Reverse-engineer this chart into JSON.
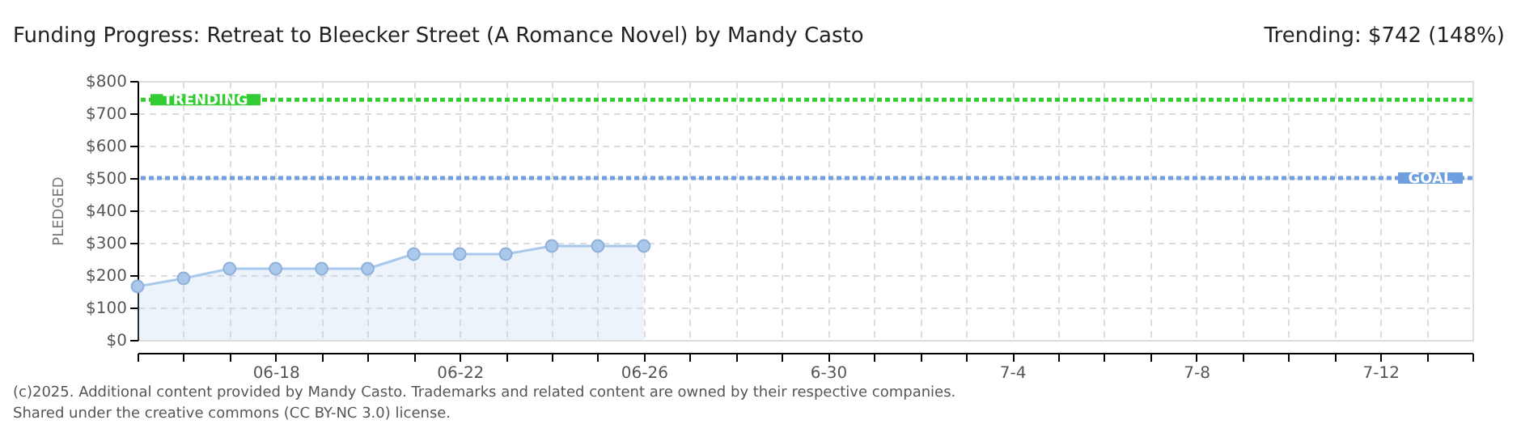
{
  "chart_data": {
    "type": "area",
    "title": "Funding Progress: Retreat to Bleecker Street (A Romance Novel) by Mandy Casto",
    "ylabel": "PLEDGED",
    "x": [
      "2025-06-15",
      "2025-06-16",
      "2025-06-17",
      "2025-06-18",
      "2025-06-19",
      "2025-06-20",
      "2025-06-21",
      "2025-06-22",
      "2025-06-23",
      "2025-06-24",
      "2025-06-25",
      "2025-06-26"
    ],
    "series": [
      {
        "color": "#a9c8ec",
        "values": [
          165,
          190,
          220,
          220,
          220,
          220,
          265,
          265,
          265,
          290,
          290,
          290
        ]
      }
    ],
    "marker": "circle",
    "xlim": [
      "2025-06-15",
      "2025-07-14"
    ],
    "xticks": [
      {
        "value": "2025-06-15",
        "label": null
      },
      {
        "value": "2025-06-16",
        "label": null
      },
      {
        "value": "2025-06-17",
        "label": null
      },
      {
        "value": "2025-06-18",
        "label": "06-18"
      },
      {
        "value": "2025-06-19",
        "label": null
      },
      {
        "value": "2025-06-20",
        "label": null
      },
      {
        "value": "2025-06-21",
        "label": null
      },
      {
        "value": "2025-06-22",
        "label": "06-22"
      },
      {
        "value": "2025-06-23",
        "label": null
      },
      {
        "value": "2025-06-24",
        "label": null
      },
      {
        "value": "2025-06-25",
        "label": null
      },
      {
        "value": "2025-06-26",
        "label": "06-26"
      },
      {
        "value": "2025-06-27",
        "label": null
      },
      {
        "value": "2025-06-28",
        "label": null
      },
      {
        "value": "2025-06-29",
        "label": null
      },
      {
        "value": "2025-06-30",
        "label": "6-30"
      },
      {
        "value": "2025-07-01",
        "label": null
      },
      {
        "value": "2025-07-02",
        "label": null
      },
      {
        "value": "2025-07-03",
        "label": null
      },
      {
        "value": "2025-07-04",
        "label": "7-4"
      },
      {
        "value": "2025-07-05",
        "label": null
      },
      {
        "value": "2025-07-06",
        "label": null
      },
      {
        "value": "2025-07-07",
        "label": null
      },
      {
        "value": "2025-07-08",
        "label": "7-8"
      },
      {
        "value": "2025-07-09",
        "label": null
      },
      {
        "value": "2025-07-10",
        "label": null
      },
      {
        "value": "2025-07-11",
        "label": null
      },
      {
        "value": "2025-07-12",
        "label": "7-12"
      },
      {
        "value": "2025-07-13",
        "label": null
      },
      {
        "value": "2025-07-14",
        "label": null
      }
    ],
    "ylim": [
      0,
      800
    ],
    "yticks": [
      {
        "value": 0,
        "label": "$0"
      },
      {
        "value": 100,
        "label": "$100"
      },
      {
        "value": 200,
        "label": "$200"
      },
      {
        "value": 300,
        "label": "$300"
      },
      {
        "value": 400,
        "label": "$400"
      },
      {
        "value": 500,
        "label": "$500"
      },
      {
        "value": 600,
        "label": "$600"
      },
      {
        "value": 700,
        "label": "$700"
      },
      {
        "value": 800,
        "label": "$800"
      }
    ],
    "grid": true,
    "ref_lines": [
      {
        "axis": "y",
        "value": 742,
        "label": "TRENDING",
        "color": "#33cc33",
        "line_style": "dotted"
      },
      {
        "axis": "y",
        "value": 500,
        "label": "GOAL",
        "color": "#6f9fdf",
        "line_style": "dotted"
      }
    ],
    "annotations": [
      "Trending: $742 (148%)",
      "(c)2025. Additional content provided by Mandy Casto. Trademarks and related content are owned by their respective companies.",
      "Shared under the creative commons (CC BY-NC 3.0) license."
    ]
  }
}
